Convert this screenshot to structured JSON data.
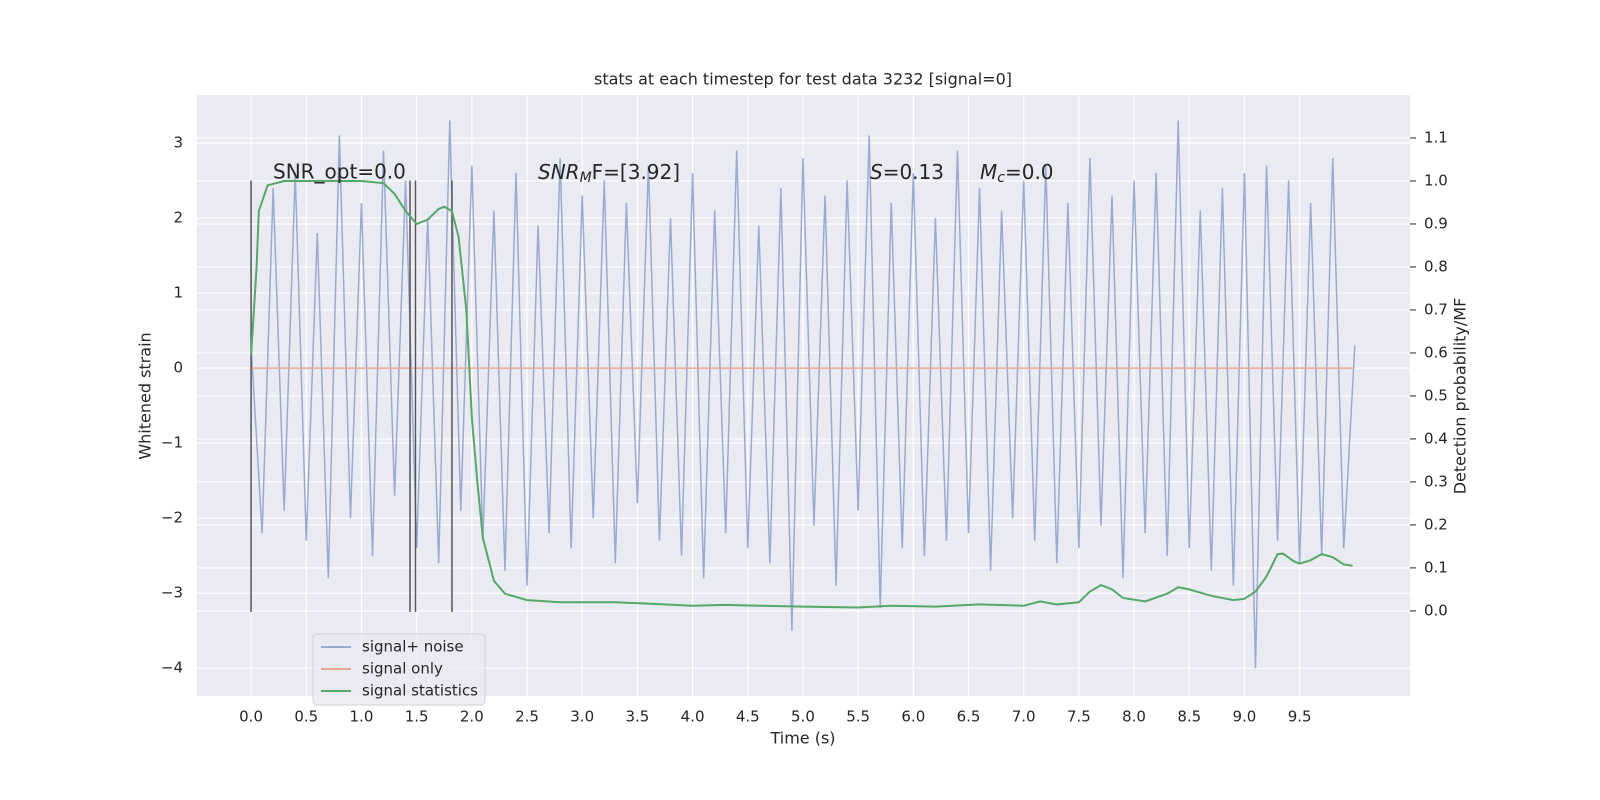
{
  "chart_data": {
    "type": "line",
    "title": "stats at each timestep for test data 3232 [signal=0]",
    "xlabel": "Time (s)",
    "ylabel": "Whitened strain",
    "y2label": "Detection probability/MF",
    "xlim": [
      -0.49,
      10.5
    ],
    "ylim": [
      -4.37,
      3.64
    ],
    "y2lim": [
      -0.198,
      1.2
    ],
    "xticks": [
      {
        "value": 0,
        "label": "0.0"
      },
      0.5,
      {
        "value": 1,
        "label": "1.0"
      },
      1.5,
      {
        "value": 2,
        "label": "2.0"
      },
      2.5,
      {
        "value": 3,
        "label": "3.0"
      },
      3.5,
      {
        "value": 4,
        "label": "4.0"
      },
      4.5,
      {
        "value": 5,
        "label": "5.0"
      },
      5.5,
      {
        "value": 6,
        "label": "6.0"
      },
      6.5,
      {
        "value": 7,
        "label": "7.0"
      },
      7.5,
      {
        "value": 8,
        "label": "8.0"
      },
      8.5,
      {
        "value": 9,
        "label": "9.0"
      },
      9.5
    ],
    "yticks": [
      {
        "value": -4,
        "label": "−4"
      },
      {
        "value": -3,
        "label": "−3"
      },
      {
        "value": -2,
        "label": "−2"
      },
      {
        "value": -1,
        "label": "−1"
      },
      0,
      1,
      2,
      3
    ],
    "y2ticks": [
      {
        "value": 0,
        "label": "0.0"
      },
      0.1,
      0.2,
      0.3,
      0.4,
      0.5,
      0.6,
      0.7,
      0.8,
      0.9,
      {
        "value": 1,
        "label": "1.0"
      },
      1.1
    ],
    "grid": true,
    "legend": "lower left",
    "series": [
      {
        "name": "signal+ noise",
        "color": "#9aabd1",
        "x": [
          0.0,
          0.1,
          0.2,
          0.3,
          0.4,
          0.5,
          0.6,
          0.7,
          0.8,
          0.9,
          1.0,
          1.1,
          1.2,
          1.3,
          1.4,
          1.5,
          1.6,
          1.7,
          1.8,
          1.9,
          2.0,
          2.1,
          2.2,
          2.3,
          2.4,
          2.5,
          2.6,
          2.7,
          2.8,
          2.9,
          3.0,
          3.1,
          3.2,
          3.3,
          3.4,
          3.5,
          3.6,
          3.7,
          3.8,
          3.9,
          4.0,
          4.1,
          4.2,
          4.3,
          4.4,
          4.5,
          4.6,
          4.7,
          4.8,
          4.9,
          5.0,
          5.1,
          5.2,
          5.3,
          5.4,
          5.5,
          5.6,
          5.7,
          5.8,
          5.9,
          6.0,
          6.1,
          6.2,
          6.3,
          6.4,
          6.5,
          6.6,
          6.7,
          6.8,
          6.9,
          7.0,
          7.1,
          7.2,
          7.3,
          7.4,
          7.5,
          7.6,
          7.7,
          7.8,
          7.9,
          8.0,
          8.1,
          8.2,
          8.3,
          8.4,
          8.5,
          8.6,
          8.7,
          8.8,
          8.9,
          9.0,
          9.1,
          9.2,
          9.3,
          9.4,
          9.5,
          9.6,
          9.7,
          9.8,
          9.9,
          10.0
        ],
        "values": [
          0.3,
          -2.2,
          2.4,
          -1.9,
          2.6,
          -2.3,
          1.8,
          -2.8,
          3.1,
          -2.0,
          2.2,
          -2.5,
          2.9,
          -1.7,
          2.5,
          -2.4,
          2.0,
          -2.6,
          3.3,
          -1.9,
          2.7,
          -2.3,
          2.1,
          -2.7,
          2.6,
          -2.9,
          1.9,
          -2.2,
          2.8,
          -2.4,
          2.3,
          -2.0,
          2.5,
          -2.6,
          2.2,
          -1.8,
          2.7,
          -2.3,
          2.0,
          -2.5,
          2.6,
          -2.8,
          2.1,
          -2.2,
          2.9,
          -2.4,
          1.9,
          -2.6,
          2.4,
          -3.5,
          2.8,
          -2.1,
          2.3,
          -2.9,
          2.5,
          -1.9,
          3.1,
          -3.2,
          2.2,
          -2.4,
          2.6,
          -2.5,
          2.0,
          -2.3,
          2.9,
          -2.2,
          2.4,
          -2.7,
          2.1,
          -2.0,
          2.5,
          -2.3,
          2.7,
          -2.6,
          2.2,
          -2.4,
          2.8,
          -2.1,
          2.3,
          -2.8,
          2.5,
          -2.2,
          2.6,
          -2.5,
          3.3,
          -2.4,
          2.1,
          -2.7,
          2.4,
          -2.9,
          2.6,
          -4.0,
          2.7,
          -2.3,
          2.5,
          -2.6,
          2.2,
          -2.5,
          2.8,
          -2.4,
          0.3
        ]
      },
      {
        "name": "signal only",
        "color": "#e8a98c",
        "x": [
          0.0,
          9.98
        ],
        "values": [
          0,
          0
        ]
      },
      {
        "name": "signal statistics",
        "color": "#55a868",
        "axis": "y2",
        "x": [
          0,
          0.05,
          0.07,
          0.15,
          0.3,
          0.6,
          1.0,
          1.2,
          1.3,
          1.4,
          1.5,
          1.6,
          1.7,
          1.75,
          1.82,
          1.88,
          1.95,
          2.0,
          2.05,
          2.1,
          2.2,
          2.3,
          2.5,
          2.8,
          3.3,
          3.5,
          4.0,
          4.3,
          4.6,
          5.0,
          5.5,
          5.8,
          6.2,
          6.6,
          7.0,
          7.15,
          7.3,
          7.5,
          7.6,
          7.7,
          7.8,
          7.9,
          8.1,
          8.3,
          8.4,
          8.5,
          8.7,
          8.9,
          9.0,
          9.1,
          9.2,
          9.3,
          9.35,
          9.45,
          9.5,
          9.6,
          9.7,
          9.8,
          9.9,
          9.98
        ],
        "values": [
          0.595,
          0.8,
          0.93,
          0.99,
          1.0,
          1.0,
          1.0,
          0.995,
          0.97,
          0.93,
          0.9,
          0.91,
          0.935,
          0.94,
          0.93,
          0.87,
          0.7,
          0.45,
          0.3,
          0.17,
          0.07,
          0.04,
          0.025,
          0.02,
          0.02,
          0.018,
          0.012,
          0.014,
          0.012,
          0.01,
          0.008,
          0.012,
          0.01,
          0.015,
          0.012,
          0.022,
          0.015,
          0.02,
          0.045,
          0.06,
          0.05,
          0.03,
          0.022,
          0.04,
          0.055,
          0.05,
          0.035,
          0.025,
          0.028,
          0.045,
          0.08,
          0.132,
          0.133,
          0.115,
          0.11,
          0.118,
          0.132,
          0.125,
          0.108,
          0.105
        ]
      }
    ],
    "vlines": {
      "x": [
        0,
        1.44,
        1.49,
        1.82
      ],
      "ymin": -3.25,
      "ymax": 2.5,
      "color": "#555555"
    },
    "annotations": [
      [
        "SNR_opt=0.0"
      ],
      [
        "SNR",
        "M",
        "F=[3.92]"
      ],
      [
        "S",
        "=0.13"
      ],
      [
        "M",
        "c",
        "=0.0"
      ]
    ]
  }
}
